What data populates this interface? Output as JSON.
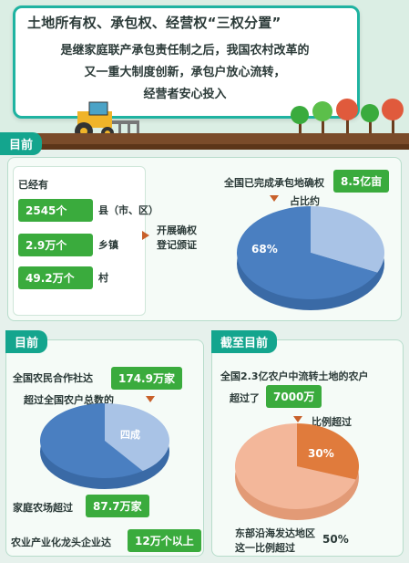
{
  "header": {
    "title": "土地所有权、承包权、经营权“三权分置”",
    "line1": "是继家庭联产承包责任制之后，我国农村改革的",
    "line2": "又一重大制度创新，承包户放心流转，",
    "line3": "经营者安心投入"
  },
  "section1": {
    "tag": "目前",
    "already": "已经有",
    "items": [
      {
        "value": "2545个",
        "unit": "县（市、区）"
      },
      {
        "value": "2.9万个",
        "unit": "乡镇"
      },
      {
        "value": "49.2万个",
        "unit": "村"
      }
    ],
    "action_line1": "开展确权",
    "action_line2": "登记颁证",
    "completed_label": "全国已完成承包地确权",
    "completed_value": "8.5亿亩",
    "share_label": "占比约",
    "pie_percent": "68%",
    "pie_value": 68
  },
  "section2": {
    "tag": "目前",
    "coop_label": "全国农民合作社达",
    "coop_value": "174.9万家",
    "share_label": "超过全国农户总数的",
    "pie_label": "四成",
    "pie_value": 40,
    "farm_label": "家庭农场超过",
    "farm_value": "87.7万家",
    "leader_label": "农业产业化龙头企业达",
    "leader_value": "12万个以上"
  },
  "section3": {
    "tag": "截至目前",
    "line1": "全国2.3亿农户中流转土地的农户",
    "line2": "超过了",
    "value": "7000万",
    "ratio_label": "比例超过",
    "pie_percent": "30%",
    "pie_value": 30,
    "east_line1": "东部沿海发达地区",
    "east_line2": "这一比例超过",
    "east_percent": "50%"
  },
  "colors": {
    "teal": "#14a58e",
    "green": "#3aab3d",
    "blue_pie": "#4a7fc1",
    "light_blue": "#a9c3e6",
    "salmon": "#f3b79a",
    "orange": "#e07b3c"
  }
}
